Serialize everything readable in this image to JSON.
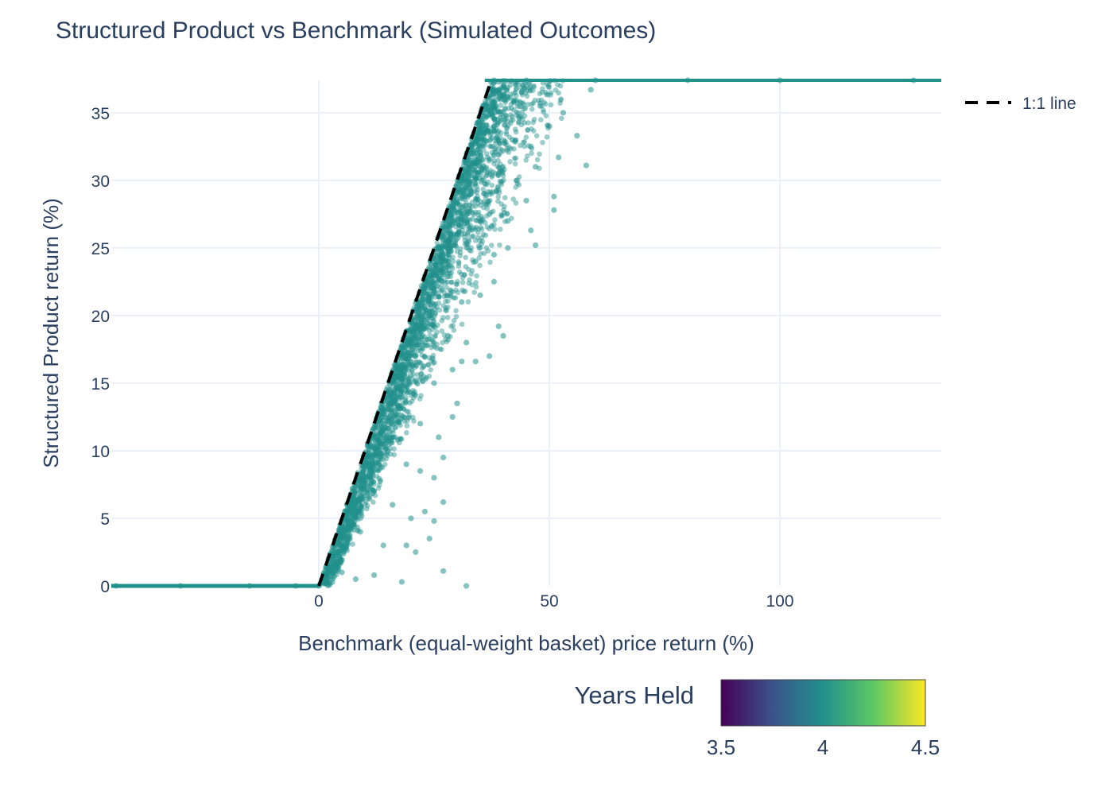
{
  "chart_data": {
    "type": "scatter",
    "title": "Structured Product vs Benchmark (Simulated Outcomes)",
    "xlabel": "Benchmark (equal-weight basket) price return (%)",
    "ylabel": "Structured Product return (%)",
    "xlim": [
      -45,
      135
    ],
    "ylim": [
      0,
      37.4
    ],
    "xticks": [
      0,
      50,
      100
    ],
    "yticks": [
      0,
      5,
      10,
      15,
      20,
      25,
      30,
      35
    ],
    "grid": true,
    "legend": {
      "position": "top-right",
      "entries": [
        {
          "name": "1:1 line",
          "style": "dashed",
          "color": "#000000"
        }
      ]
    },
    "reference_line": {
      "name": "1:1 line",
      "x": [
        0,
        37.4
      ],
      "y": [
        0,
        37.4
      ]
    },
    "cap": 37.4,
    "marker_color": "#21918c",
    "series": [
      {
        "name": "",
        "points_note_removed": true,
        "points": [
          [
            -44,
            0
          ],
          [
            -30,
            0
          ],
          [
            -15,
            0
          ],
          [
            -5,
            0
          ],
          [
            0,
            0
          ],
          [
            32,
            0
          ],
          [
            2,
            1
          ],
          [
            5,
            1
          ],
          [
            8,
            0.5
          ],
          [
            12,
            0.8
          ],
          [
            27,
            1.1
          ],
          [
            18,
            0.3
          ],
          [
            5,
            3
          ],
          [
            9,
            4
          ],
          [
            14,
            3
          ],
          [
            19,
            3
          ],
          [
            21,
            2.5
          ],
          [
            24,
            3.5
          ],
          [
            8,
            6
          ],
          [
            12,
            7
          ],
          [
            16,
            6
          ],
          [
            20,
            5
          ],
          [
            23,
            5.5
          ],
          [
            25,
            4.8
          ],
          [
            27,
            6.2
          ],
          [
            11,
            9
          ],
          [
            15,
            10
          ],
          [
            19,
            9
          ],
          [
            22,
            8.5
          ],
          [
            25,
            8
          ],
          [
            27,
            9.5
          ],
          [
            14,
            13
          ],
          [
            18,
            14
          ],
          [
            22,
            12
          ],
          [
            26,
            11
          ],
          [
            29,
            12.5
          ],
          [
            30,
            13.5
          ],
          [
            17,
            16
          ],
          [
            21,
            17
          ],
          [
            25,
            15
          ],
          [
            29,
            16
          ],
          [
            31,
            16.6
          ],
          [
            34,
            16.6
          ],
          [
            20,
            19
          ],
          [
            24,
            20
          ],
          [
            28,
            18.5
          ],
          [
            32,
            18
          ],
          [
            37,
            17
          ],
          [
            40,
            18.5
          ],
          [
            39,
            19.2
          ],
          [
            23,
            22
          ],
          [
            27,
            23
          ],
          [
            31,
            21
          ],
          [
            35,
            21.5
          ],
          [
            38,
            22.5
          ],
          [
            26,
            25
          ],
          [
            30,
            26
          ],
          [
            34,
            24
          ],
          [
            38,
            24.5
          ],
          [
            41,
            25
          ],
          [
            47,
            25.2
          ],
          [
            46,
            26.3
          ],
          [
            29,
            28
          ],
          [
            33,
            29
          ],
          [
            37,
            27.5
          ],
          [
            41,
            27
          ],
          [
            45,
            28.5
          ],
          [
            51,
            27.8
          ],
          [
            51,
            28.8
          ],
          [
            31,
            30
          ],
          [
            35,
            31
          ],
          [
            39,
            30.5
          ],
          [
            43,
            30
          ],
          [
            47,
            31
          ],
          [
            52,
            31.7
          ],
          [
            58,
            31.1
          ],
          [
            34,
            33
          ],
          [
            38,
            34
          ],
          [
            42,
            33
          ],
          [
            46,
            32.5
          ],
          [
            50,
            34
          ],
          [
            56,
            33.3
          ],
          [
            36,
            35.5
          ],
          [
            40,
            36
          ],
          [
            44,
            36.5
          ],
          [
            48,
            35.5
          ],
          [
            53,
            35
          ],
          [
            59,
            36.7
          ],
          [
            38,
            37.4
          ],
          [
            45,
            37.4
          ],
          [
            60,
            37.4
          ],
          [
            80,
            37.4
          ],
          [
            100,
            37.4
          ],
          [
            129,
            37.4
          ]
        ]
      }
    ],
    "colorbar": {
      "title": "Years Held",
      "range": [
        3.5,
        4.5
      ],
      "ticks": [
        "3.5",
        "4",
        "4.5"
      ],
      "colorscale": [
        "#440154",
        "#3b528b",
        "#21918c",
        "#5ec962",
        "#fde725"
      ]
    }
  }
}
